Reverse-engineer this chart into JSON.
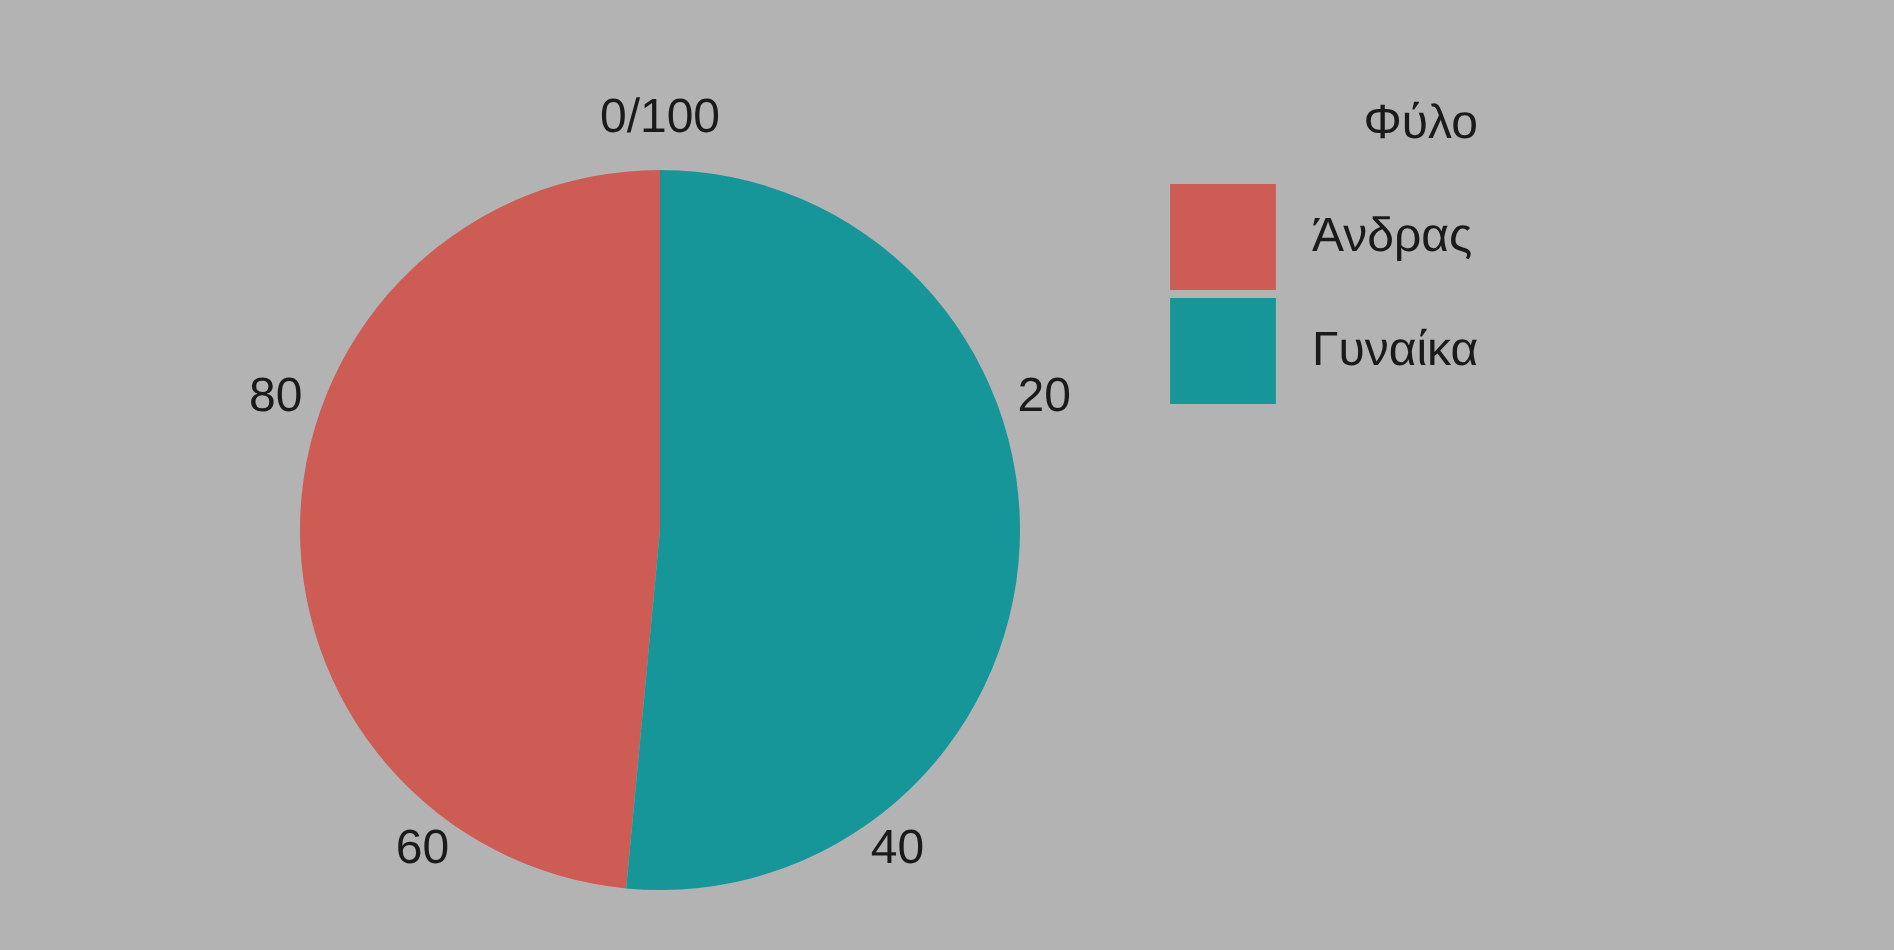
{
  "chart_data": {
    "type": "pie",
    "legend_title": "Φύλο",
    "legend": "top right",
    "categories": [
      "Άνδρας",
      "Γυναίκα"
    ],
    "values": [
      48.5,
      51.5
    ],
    "colors": [
      "#cd5c55",
      "#17969a"
    ],
    "annotations": [
      "0/100",
      "20",
      "40",
      "60",
      "80"
    ]
  }
}
